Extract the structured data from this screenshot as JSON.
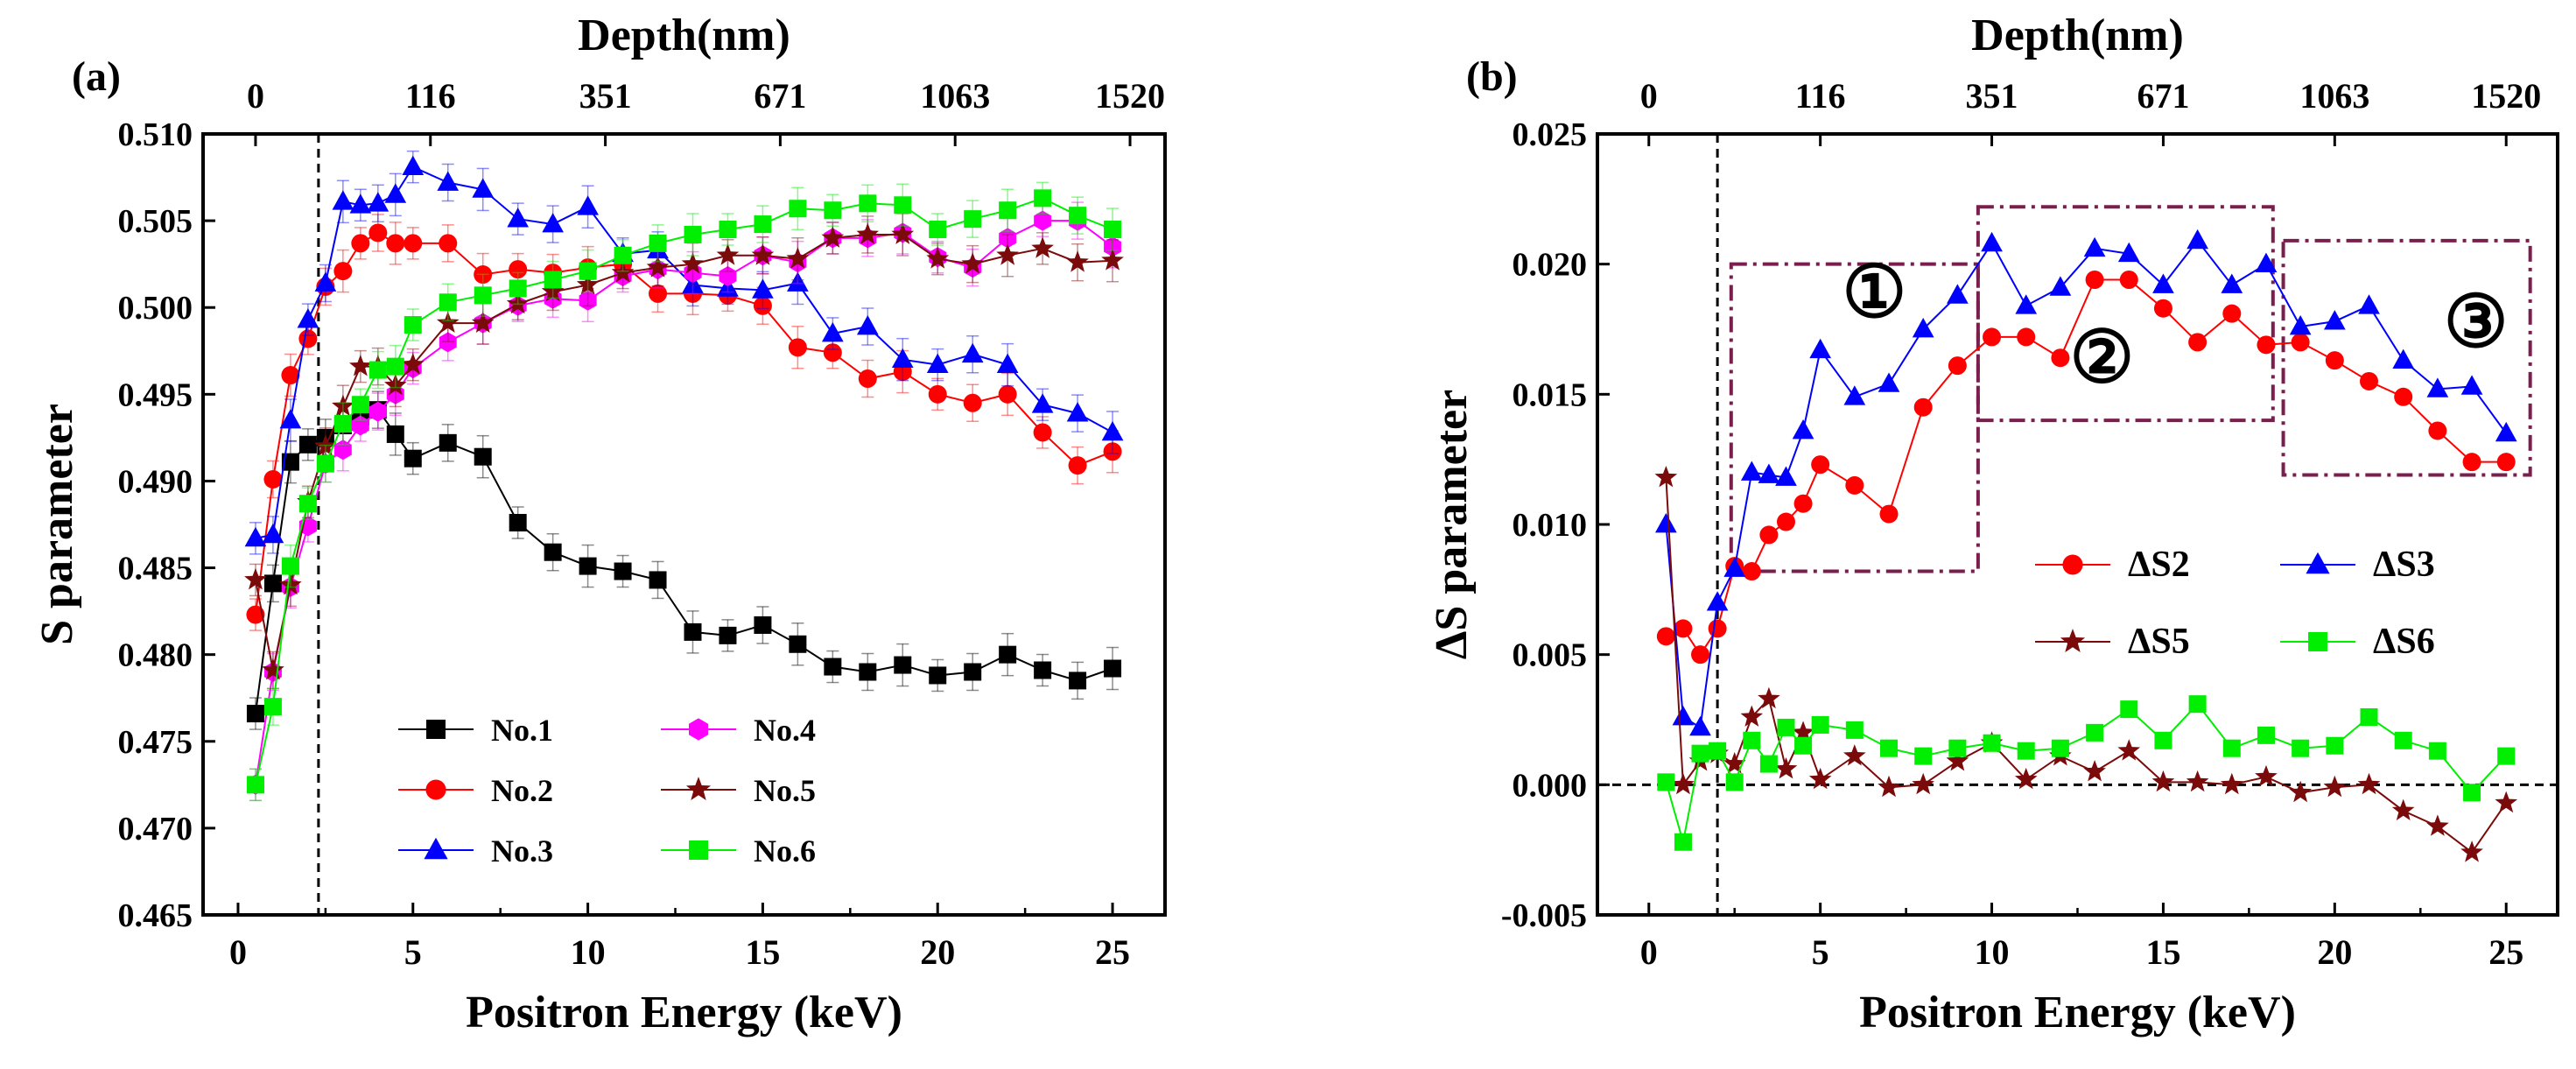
{
  "panels": [
    {
      "id": "a",
      "label": "(a)",
      "type": "line",
      "top_axis_title": "Depth(nm)",
      "top_ticks": [
        {
          "e": 0.5,
          "label": "0"
        },
        {
          "e": 5.5,
          "label": "116"
        },
        {
          "e": 10.5,
          "label": "351"
        },
        {
          "e": 15.5,
          "label": "671"
        },
        {
          "e": 20.5,
          "label": "1063"
        },
        {
          "e": 25.5,
          "label": "1520"
        }
      ],
      "xlabel": "Positron Energy (keV)",
      "ylabel": "S parameter",
      "xlim": [
        -1,
        26.5
      ],
      "ylim": [
        0.465,
        0.51
      ],
      "xticks": [
        0,
        5,
        10,
        15,
        20,
        25
      ],
      "yticks": [
        0.465,
        0.47,
        0.475,
        0.48,
        0.485,
        0.49,
        0.495,
        0.5,
        0.505,
        0.51
      ],
      "ytick_labels": [
        "0.465",
        "0.470",
        "0.475",
        "0.480",
        "0.485",
        "0.490",
        "0.495",
        "0.500",
        "0.505",
        "0.510"
      ],
      "ytick_decimals": 3,
      "vline_x": 2.3,
      "error_bars": true,
      "legend": {
        "position": "bottom-center",
        "columns": 2
      },
      "series": [
        {
          "name": "No.1",
          "color": "#000000",
          "marker": "square",
          "x": [
            0.5,
            1,
            1.5,
            2,
            2.5,
            3,
            3.5,
            4,
            4.5,
            5,
            6,
            7,
            8,
            9,
            10,
            11,
            12,
            13,
            14,
            15,
            16,
            17,
            18,
            19,
            20,
            21,
            22,
            23,
            24,
            25
          ],
          "y": [
            0.4766,
            0.4841,
            0.4911,
            0.4921,
            0.4925,
            0.4932,
            0.4937,
            0.4941,
            0.4927,
            0.4913,
            0.4922,
            0.4914,
            0.4876,
            0.4859,
            0.4851,
            0.4848,
            0.4843,
            0.4813,
            0.4811,
            0.4817,
            0.4806,
            0.4793,
            0.479,
            0.4794,
            0.4788,
            0.479,
            0.48,
            0.4791,
            0.4785,
            0.4792
          ]
        },
        {
          "name": "No.2",
          "color": "#ff0000",
          "marker": "circle",
          "x": [
            0.5,
            1,
            1.5,
            2,
            2.5,
            3,
            3.5,
            4,
            4.5,
            5,
            6,
            7,
            8,
            9,
            10,
            11,
            12,
            13,
            14,
            15,
            16,
            17,
            18,
            19,
            20,
            21,
            22,
            23,
            24,
            25
          ],
          "y": [
            0.4823,
            0.4901,
            0.4961,
            0.4982,
            0.5012,
            0.5021,
            0.5037,
            0.5043,
            0.5037,
            0.5037,
            0.5037,
            0.5019,
            0.5022,
            0.502,
            0.5023,
            0.5025,
            0.5008,
            0.5008,
            0.5007,
            0.5001,
            0.4977,
            0.4974,
            0.4959,
            0.4963,
            0.495,
            0.4945,
            0.495,
            0.4928,
            0.4909,
            0.4917
          ]
        },
        {
          "name": "No.3",
          "color": "#0000ff",
          "marker": "triangle",
          "x": [
            0.5,
            1,
            1.5,
            2,
            2.5,
            3,
            3.5,
            4,
            4.5,
            5,
            6,
            7,
            8,
            9,
            10,
            11,
            12,
            13,
            14,
            15,
            16,
            17,
            18,
            19,
            20,
            21,
            22,
            23,
            24,
            25
          ],
          "y": [
            0.4867,
            0.4869,
            0.4935,
            0.4993,
            0.5014,
            0.5061,
            0.5059,
            0.506,
            0.5065,
            0.5081,
            0.5072,
            0.5068,
            0.5051,
            0.5048,
            0.5058,
            0.5031,
            0.5033,
            0.5013,
            0.5011,
            0.501,
            0.5014,
            0.4985,
            0.4989,
            0.497,
            0.4967,
            0.4973,
            0.4967,
            0.4944,
            0.4939,
            0.4928
          ]
        },
        {
          "name": "No.4",
          "color": "#ff00ff",
          "marker": "hexagon",
          "x": [
            0.5,
            1,
            1.5,
            2,
            2.5,
            3,
            3.5,
            4,
            4.5,
            5,
            6,
            7,
            8,
            9,
            10,
            11,
            12,
            13,
            14,
            15,
            16,
            17,
            18,
            19,
            20,
            21,
            22,
            23,
            24,
            25
          ],
          "y": [
            0.4725,
            0.479,
            0.4839,
            0.4874,
            0.491,
            0.4918,
            0.4932,
            0.494,
            0.495,
            0.4965,
            0.498,
            0.4991,
            0.5001,
            0.5005,
            0.5004,
            0.5018,
            0.5022,
            0.502,
            0.5018,
            0.503,
            0.5026,
            0.504,
            0.504,
            0.5043,
            0.5029,
            0.5023,
            0.504,
            0.505,
            0.505,
            0.5035
          ]
        },
        {
          "name": "No.5",
          "color": "#7b0a0a",
          "marker": "star",
          "x": [
            0.5,
            1,
            1.5,
            2,
            2.5,
            3,
            3.5,
            4,
            4.5,
            5,
            6,
            7,
            8,
            9,
            10,
            11,
            12,
            13,
            14,
            15,
            16,
            17,
            18,
            19,
            20,
            21,
            22,
            23,
            24,
            25
          ],
          "y": [
            0.4843,
            0.4791,
            0.484,
            0.4888,
            0.492,
            0.4943,
            0.4966,
            0.4966,
            0.4955,
            0.4967,
            0.4991,
            0.4991,
            0.5002,
            0.5009,
            0.5013,
            0.502,
            0.5023,
            0.5025,
            0.503,
            0.503,
            0.5028,
            0.504,
            0.5042,
            0.5042,
            0.5028,
            0.5025,
            0.503,
            0.5034,
            0.5026,
            0.5027
          ]
        },
        {
          "name": "No.6",
          "color": "#00ee00",
          "marker": "square",
          "x": [
            0.5,
            1,
            1.5,
            2,
            2.5,
            3,
            3.5,
            4,
            4.5,
            5,
            6,
            7,
            8,
            9,
            10,
            11,
            12,
            13,
            14,
            15,
            16,
            17,
            18,
            19,
            20,
            21,
            22,
            23,
            24,
            25
          ],
          "y": [
            0.4725,
            0.477,
            0.4851,
            0.4887,
            0.491,
            0.4933,
            0.4944,
            0.4964,
            0.4966,
            0.499,
            0.5003,
            0.5007,
            0.5011,
            0.5016,
            0.5021,
            0.503,
            0.5037,
            0.5042,
            0.5045,
            0.5048,
            0.5057,
            0.5056,
            0.506,
            0.5059,
            0.5045,
            0.5051,
            0.5056,
            0.5063,
            0.5053,
            0.5045
          ]
        }
      ]
    },
    {
      "id": "b",
      "label": "(b)",
      "type": "line",
      "top_axis_title": "Depth(nm)",
      "top_ticks": [
        {
          "e": 0.0,
          "label": "0"
        },
        {
          "e": 5.0,
          "label": "116"
        },
        {
          "e": 10.0,
          "label": "351"
        },
        {
          "e": 15.0,
          "label": "671"
        },
        {
          "e": 20.0,
          "label": "1063"
        },
        {
          "e": 25.0,
          "label": "1520"
        }
      ],
      "xlabel": "Positron Energy (keV)",
      "ylabel": "ΔS parameter",
      "xlim": [
        -1.5,
        26.5
      ],
      "ylim": [
        -0.005,
        0.025
      ],
      "xticks": [
        0,
        5,
        10,
        15,
        20,
        25
      ],
      "yticks": [
        -0.005,
        0,
        0.005,
        0.01,
        0.015,
        0.02,
        0.025
      ],
      "ytick_labels": [
        "-0.005",
        "0.000",
        "0.005",
        "0.010",
        "0.015",
        "0.020",
        "0.025"
      ],
      "ytick_decimals": 3,
      "vline_x": 2.0,
      "hline_y": 0,
      "error_bars": false,
      "legend": {
        "position": "right-middle",
        "columns": 2
      },
      "regions": [
        {
          "label": "①",
          "x0": 2.4,
          "x1": 9.6,
          "y0": 0.0082,
          "y1": 0.02
        },
        {
          "label": "②",
          "x0": 9.6,
          "x1": 18.2,
          "y0": 0.014,
          "y1": 0.0222
        },
        {
          "label": "③",
          "x0": 18.5,
          "x1": 25.7,
          "y0": 0.0119,
          "y1": 0.0209
        }
      ],
      "series": [
        {
          "name": "ΔS2",
          "color": "#ff0000",
          "marker": "circle",
          "x": [
            0.5,
            1,
            1.5,
            2,
            2.5,
            3,
            3.5,
            4,
            4.5,
            5,
            6,
            7,
            8,
            9,
            10,
            11,
            12,
            13,
            14,
            15,
            16,
            17,
            18,
            19,
            20,
            21,
            22,
            23,
            24,
            25
          ],
          "y": [
            0.0057,
            0.006,
            0.005,
            0.006,
            0.0084,
            0.0082,
            0.0096,
            0.0101,
            0.0108,
            0.0123,
            0.0115,
            0.0104,
            0.0145,
            0.0161,
            0.0172,
            0.0172,
            0.0164,
            0.0194,
            0.0194,
            0.0183,
            0.017,
            0.0181,
            0.0169,
            0.017,
            0.0163,
            0.0155,
            0.0149,
            0.0136,
            0.0124,
            0.0124
          ]
        },
        {
          "name": "ΔS3",
          "color": "#0000ff",
          "marker": "triangle",
          "x": [
            0.5,
            1,
            1.5,
            2,
            2.5,
            3,
            3.5,
            4,
            4.5,
            5,
            6,
            7,
            8,
            9,
            10,
            11,
            12,
            13,
            14,
            15,
            16,
            17,
            18,
            19,
            20,
            21,
            22,
            23,
            24,
            25
          ],
          "y": [
            0.01,
            0.0026,
            0.0022,
            0.007,
            0.0083,
            0.012,
            0.0119,
            0.0118,
            0.0136,
            0.0167,
            0.0149,
            0.0154,
            0.0175,
            0.0188,
            0.0208,
            0.0184,
            0.0191,
            0.0206,
            0.0204,
            0.0192,
            0.0209,
            0.0192,
            0.02,
            0.0176,
            0.0178,
            0.0184,
            0.0163,
            0.0152,
            0.0153,
            0.0135
          ]
        },
        {
          "name": "ΔS5",
          "color": "#7b0a0a",
          "marker": "star",
          "x": [
            0.5,
            1,
            1.5,
            2,
            2.5,
            3,
            3.5,
            4,
            4.5,
            5,
            6,
            7,
            8,
            9,
            10,
            11,
            12,
            13,
            14,
            15,
            16,
            17,
            18,
            19,
            20,
            21,
            22,
            23,
            24,
            25
          ],
          "y": [
            0.0118,
            0.0,
            0.0009,
            0.0012,
            0.0008,
            0.0026,
            0.0033,
            0.0006,
            0.002,
            0.0002,
            0.0011,
            -0.0001,
            0.0,
            0.0009,
            0.0016,
            0.0002,
            0.0011,
            0.0005,
            0.0013,
            0.0001,
            0.0001,
            0.0,
            0.0003,
            -0.0003,
            -0.0001,
            0.0,
            -0.001,
            -0.0016,
            -0.0026,
            -0.0007
          ]
        },
        {
          "name": "ΔS6",
          "color": "#00ee00",
          "marker": "square",
          "x": [
            0.5,
            1,
            1.5,
            2,
            2.5,
            3,
            3.5,
            4,
            4.5,
            5,
            6,
            7,
            8,
            9,
            10,
            11,
            12,
            13,
            14,
            15,
            16,
            17,
            18,
            19,
            20,
            21,
            22,
            23,
            24,
            25
          ],
          "y": [
            0.0001,
            -0.0022,
            0.0012,
            0.0013,
            0.0001,
            0.0017,
            0.0008,
            0.0022,
            0.0015,
            0.0023,
            0.0021,
            0.0014,
            0.0011,
            0.0014,
            0.0016,
            0.0013,
            0.0014,
            0.002,
            0.0029,
            0.0017,
            0.0031,
            0.0014,
            0.0019,
            0.0014,
            0.0015,
            0.0026,
            0.0017,
            0.0013,
            -0.0003,
            0.0011
          ]
        }
      ]
    }
  ]
}
